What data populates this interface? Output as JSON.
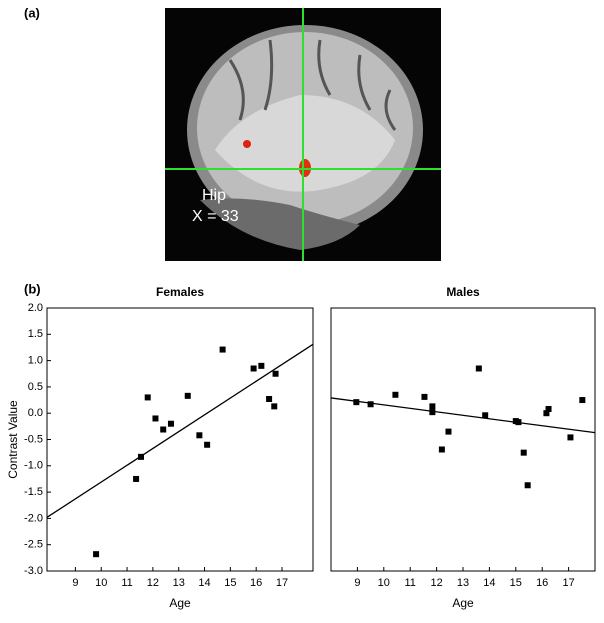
{
  "labels": {
    "a": "(a)",
    "b": "(b)"
  },
  "image": {
    "region": "Hip",
    "coordinate": "X = 33"
  },
  "chart_data": [
    {
      "type": "scatter",
      "title": "Females",
      "x_label": "Age",
      "y_label": "Contrast Value",
      "color": "#000000",
      "xlim": [
        7.9,
        18.2
      ],
      "ylim": [
        -3,
        2
      ],
      "xticks": [
        9,
        10,
        11,
        12,
        13,
        14,
        15,
        16,
        17
      ],
      "yticks": [
        {
          "value": -3,
          "label": "-3.0"
        },
        {
          "value": -2.5,
          "label": "-2.5"
        },
        {
          "value": -2,
          "label": "-2.0"
        },
        {
          "value": -1.5,
          "label": "-1.5"
        },
        {
          "value": -1,
          "label": "-1.0"
        },
        {
          "value": -0.5,
          "label": "-0.5"
        },
        {
          "value": 0,
          "label": "0.0"
        },
        {
          "value": 0.5,
          "label": "0.5"
        },
        {
          "value": 1,
          "label": "1.0"
        },
        {
          "value": 1.5,
          "label": "1.5"
        },
        {
          "value": 2,
          "label": "2.0"
        }
      ],
      "x": [
        9.8,
        11.35,
        11.54,
        11.8,
        12.1,
        12.4,
        12.7,
        13.35,
        13.8,
        14.1,
        14.7,
        15.9,
        16.2,
        16.5,
        16.7,
        16.75
      ],
      "values": [
        -2.68,
        -1.25,
        -0.83,
        0.3,
        -0.1,
        -0.31,
        -0.2,
        0.33,
        -0.42,
        -0.6,
        1.21,
        0.85,
        0.9,
        0.27,
        0.13,
        0.75
      ],
      "fit": {
        "x": [
          7.9,
          18.2
        ],
        "y": [
          -1.98,
          1.31
        ]
      }
    },
    {
      "type": "scatter",
      "title": "Males",
      "x_label": "Age",
      "color": "#000000",
      "xlim": [
        8.0,
        18.0
      ],
      "ylim": [
        -3,
        2
      ],
      "xticks": [
        9,
        10,
        11,
        12,
        13,
        14,
        15,
        16,
        17
      ],
      "x": [
        8.96,
        9.5,
        10.44,
        11.54,
        11.84,
        11.84,
        12.2,
        12.45,
        13.6,
        13.84,
        15.0,
        15.1,
        15.3,
        15.45,
        16.16,
        16.24,
        17.07,
        17.52
      ],
      "values": [
        0.21,
        0.17,
        0.35,
        0.31,
        0.13,
        0.02,
        -0.69,
        -0.35,
        0.85,
        -0.04,
        -0.15,
        -0.17,
        -0.75,
        -1.37,
        0.0,
        0.08,
        -0.46,
        0.25
      ],
      "fit": {
        "x": [
          8.0,
          18.0
        ],
        "y": [
          0.29,
          -0.37
        ]
      }
    }
  ]
}
